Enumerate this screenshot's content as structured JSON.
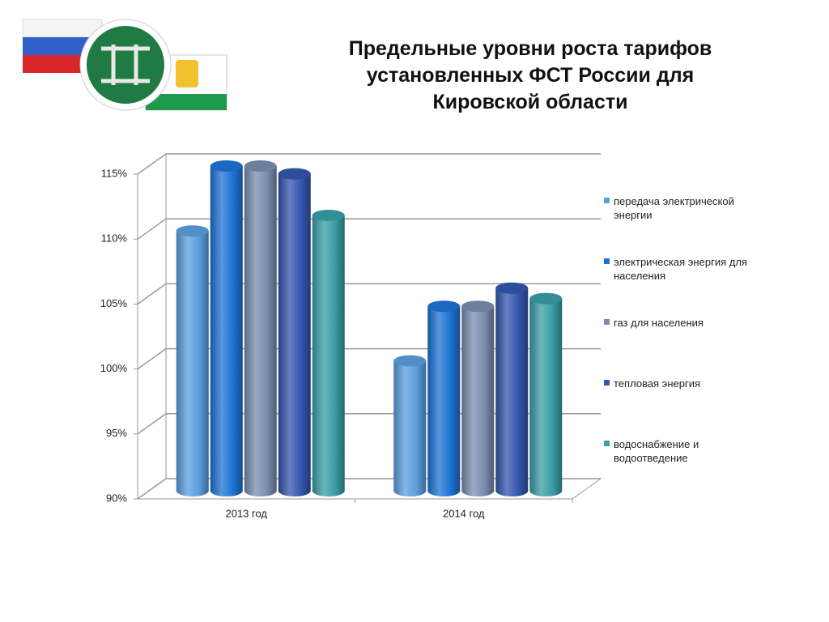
{
  "chart_data": {
    "type": "bar3d",
    "title": "Предельные уровни роста тарифов установленных ФСТ России для Кировской области",
    "categories": [
      "2013 год",
      "2014 год"
    ],
    "series": [
      {
        "name": "передача электрической энергии",
        "color": "#5b9fdf",
        "values": [
          110,
          100
        ]
      },
      {
        "name": "электрическая энергия для населения",
        "color": "#1d74d6",
        "values": [
          115,
          104.2
        ]
      },
      {
        "name": "газ для населения",
        "color": "#7a8db0",
        "values": [
          115,
          104.2
        ]
      },
      {
        "name": "тепловая энергия",
        "color": "#3456ae",
        "values": [
          114.4,
          105.6
        ]
      },
      {
        "name": "водоснабжение и водоотведение",
        "color": "#3a9ea6",
        "values": [
          111.2,
          104.8
        ]
      }
    ],
    "ylim": [
      90,
      115
    ],
    "yticks": [
      {
        "value": 90,
        "label": "90%"
      },
      {
        "value": 95,
        "label": "95%"
      },
      {
        "value": 100,
        "label": "100%"
      },
      {
        "value": 105,
        "label": "105%"
      },
      {
        "value": 110,
        "label": "110%"
      },
      {
        "value": 115,
        "label": "115%"
      }
    ],
    "grid": true,
    "legend": "right"
  }
}
